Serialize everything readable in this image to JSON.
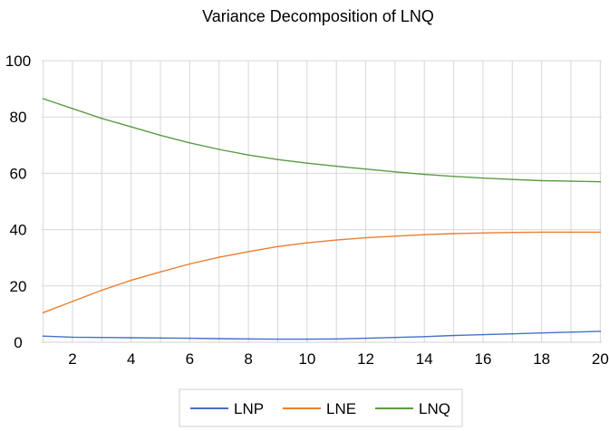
{
  "chart_data": {
    "type": "line",
    "title": "Variance Decomposition of LNQ",
    "xlabel": "",
    "ylabel": "",
    "xlim": [
      1,
      20
    ],
    "ylim": [
      0,
      100
    ],
    "x_ticks": [
      2,
      4,
      6,
      8,
      10,
      12,
      14,
      16,
      18,
      20
    ],
    "y_ticks": [
      0,
      20,
      40,
      60,
      80,
      100
    ],
    "grid": true,
    "legend_position": "bottom",
    "x": [
      1,
      2,
      3,
      4,
      5,
      6,
      7,
      8,
      9,
      10,
      11,
      12,
      13,
      14,
      15,
      16,
      17,
      18,
      19,
      20
    ],
    "series": [
      {
        "name": "LNP",
        "color": "#4472c4",
        "values": [
          2.2,
          1.8,
          1.7,
          1.6,
          1.5,
          1.4,
          1.3,
          1.2,
          1.1,
          1.1,
          1.2,
          1.4,
          1.7,
          2.0,
          2.4,
          2.7,
          3.0,
          3.3,
          3.6,
          3.9
        ]
      },
      {
        "name": "LNE",
        "color": "#ed7d31",
        "values": [
          10.5,
          14.5,
          18.5,
          22.0,
          25.0,
          27.8,
          30.2,
          32.2,
          34.0,
          35.3,
          36.3,
          37.1,
          37.7,
          38.2,
          38.6,
          38.8,
          39.0,
          39.1,
          39.1,
          39.1
        ]
      },
      {
        "name": "LNQ",
        "color": "#5b9b45",
        "values": [
          86.5,
          83.0,
          79.5,
          76.5,
          73.5,
          70.8,
          68.5,
          66.5,
          64.9,
          63.6,
          62.5,
          61.5,
          60.5,
          59.6,
          58.9,
          58.3,
          57.8,
          57.4,
          57.2,
          57.0
        ]
      }
    ]
  }
}
